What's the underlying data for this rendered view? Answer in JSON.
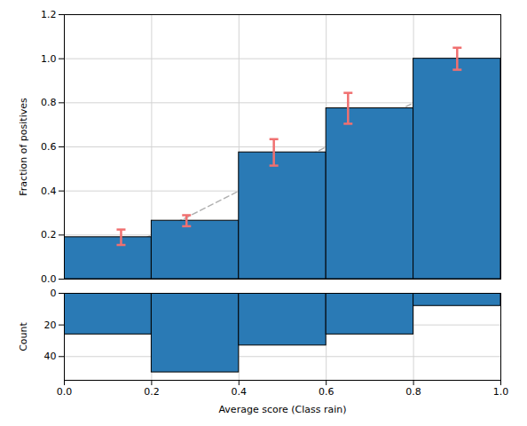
{
  "chart_data": [
    {
      "type": "bar",
      "ylabel": "Fraction of positives",
      "xlim": [
        0.0,
        1.0
      ],
      "ylim": [
        0.0,
        1.2
      ],
      "xticks": [
        0.0,
        0.2,
        0.4,
        0.6,
        0.8,
        1.0
      ],
      "yticks": [
        {
          "value": 0.0,
          "label": "0.0"
        },
        0.2,
        0.4,
        0.6,
        0.8,
        {
          "value": 1.0,
          "label": "1.0"
        },
        1.2
      ],
      "grid": true,
      "tick_labels": "y",
      "series": [
        {
          "type": "bar",
          "bins": [
            0.0,
            0.2,
            0.4,
            0.6,
            0.8,
            1.0
          ],
          "values": [
            0.19,
            0.265,
            0.575,
            0.775,
            1.0
          ],
          "color": "#2a7ab5"
        },
        {
          "type": "errorbar",
          "x": [
            0.13,
            0.28,
            0.48,
            0.65,
            0.9
          ],
          "values": [
            0.19,
            0.265,
            0.575,
            0.775,
            1.0
          ],
          "errors": [
            0.035,
            0.025,
            0.06,
            0.07,
            0.05
          ],
          "color": "#f07070"
        },
        {
          "type": "line",
          "x": [
            0.13,
            0.28,
            0.48,
            0.65,
            0.9
          ],
          "values": [
            0.13,
            0.28,
            0.48,
            0.65,
            0.9
          ],
          "color": "#b0b0b0",
          "line_style": "dashed"
        }
      ]
    },
    {
      "type": "bar",
      "xlabel": "Average score (Class rain)",
      "ylabel": "Count",
      "bins": [
        0.0,
        0.2,
        0.4,
        0.6,
        0.8,
        1.0
      ],
      "values": [
        26,
        50,
        33,
        26,
        8
      ],
      "color": "#2a7ab5",
      "xlim": [
        0.0,
        1.0
      ],
      "ylim": [
        55,
        0
      ],
      "xticks": [
        {
          "value": 0.0,
          "label": "0.0"
        },
        {
          "value": 0.2,
          "label": "0.2"
        },
        {
          "value": 0.4,
          "label": "0.4"
        },
        {
          "value": 0.6,
          "label": "0.6"
        },
        {
          "value": 0.8,
          "label": "0.8"
        },
        {
          "value": 1.0,
          "label": "1.0"
        }
      ],
      "yticks": [
        0,
        20,
        40
      ],
      "grid": true
    }
  ]
}
